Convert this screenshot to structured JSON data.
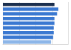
{
  "chart_data": {
    "type": "bar",
    "orientation": "horizontal",
    "categories": [
      null,
      null,
      null,
      null,
      null,
      null,
      null,
      null,
      null
    ],
    "values": [
      79,
      85,
      83,
      79,
      79,
      78,
      78,
      77,
      74
    ],
    "colors": [
      "#1b2f4e",
      "#3a78d1",
      "#3a78d1",
      "#3a78d1",
      "#3a78d1",
      "#3a78d1",
      "#3a78d1",
      "#3a78d1",
      "#8db6e8"
    ],
    "xlim": [
      0,
      100
    ],
    "xticks": [
      0,
      25,
      50,
      75,
      100
    ],
    "grid": true,
    "tick_labels": false
  }
}
